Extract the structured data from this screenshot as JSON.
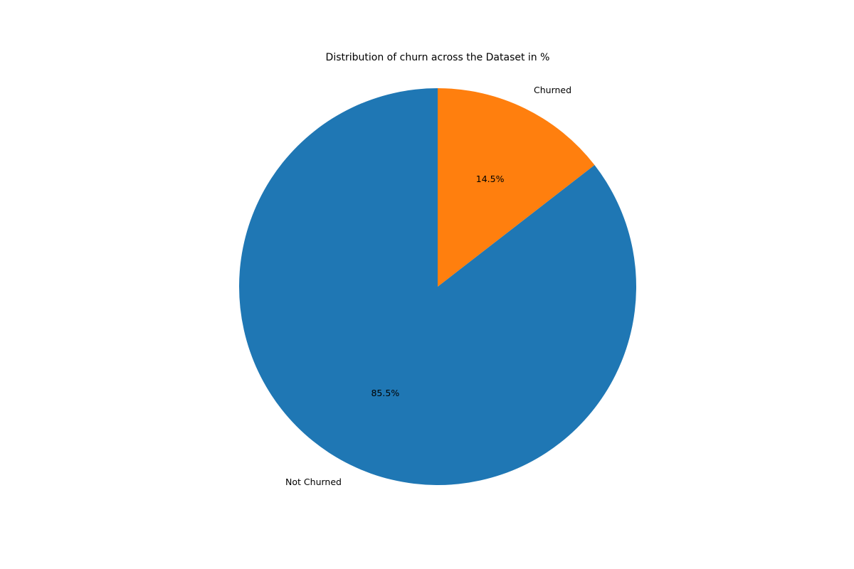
{
  "chart_data": {
    "type": "pie",
    "title": "Distribution of churn across the Dataset in %",
    "categories": [
      "Not Churned",
      "Churned"
    ],
    "values": [
      85.5,
      14.5
    ],
    "value_labels": [
      "85.5%",
      "14.5%"
    ],
    "colors": [
      "#1f77b4",
      "#ff7f0e"
    ],
    "start_angle_deg": 90,
    "direction": "clockwise-from-top (Not Churned counter-clockwise, Churned clockwise)",
    "legend": "none",
    "grid": false
  }
}
